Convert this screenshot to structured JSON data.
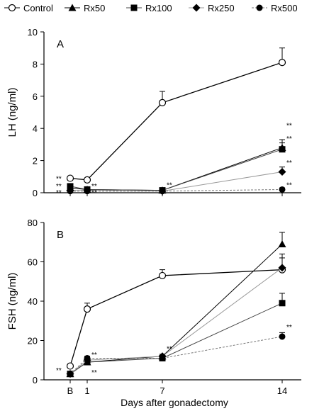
{
  "legend": {
    "entries": [
      {
        "label": "Control",
        "marker": "open-circle",
        "dash": "solid"
      },
      {
        "label": "Rx50",
        "marker": "triangle",
        "dash": "solid"
      },
      {
        "label": "Rx100",
        "marker": "square",
        "dash": "solid"
      },
      {
        "label": "Rx250",
        "marker": "diamond",
        "dash": "solid"
      },
      {
        "label": "Rx500",
        "marker": "filled-circle",
        "dash": "dashed"
      }
    ]
  },
  "xlabel": "Days after gonadectomy",
  "chart_data": [
    {
      "type": "line",
      "panel_label": "A",
      "ylabel": "LH (ng/ml)",
      "ylim": [
        0,
        10
      ],
      "yticks": [
        0,
        2,
        4,
        6,
        8,
        10
      ],
      "xticks": [
        {
          "value": 0,
          "label": "B"
        },
        {
          "value": 1,
          "label": "1"
        },
        {
          "value": 7,
          "label": "7"
        },
        {
          "value": 14,
          "label": "14"
        }
      ],
      "grid": false,
      "series": [
        {
          "name": "Control",
          "x": [
            0,
            1,
            7,
            14
          ],
          "y": [
            0.9,
            0.8,
            5.6,
            8.1
          ],
          "err": [
            0.1,
            0.1,
            0.7,
            0.9
          ]
        },
        {
          "name": "Rx50",
          "x": [
            0,
            1,
            7,
            14
          ],
          "y": [
            0.3,
            0.2,
            0.15,
            2.8
          ],
          "err": [
            0.05,
            0.05,
            0.05,
            0.5
          ]
        },
        {
          "name": "Rx100",
          "x": [
            0,
            1,
            7,
            14
          ],
          "y": [
            0.4,
            0.2,
            0.15,
            2.7
          ],
          "err": [
            0.05,
            0.05,
            0.05,
            0.4
          ]
        },
        {
          "name": "Rx250",
          "x": [
            0,
            1,
            7,
            14
          ],
          "y": [
            0.15,
            0.15,
            0.1,
            1.3
          ],
          "err": [
            0.05,
            0.05,
            0.05,
            0.3
          ]
        },
        {
          "name": "Rx500",
          "x": [
            0,
            1,
            7,
            14
          ],
          "y": [
            0.1,
            0.1,
            0.1,
            0.2
          ],
          "err": [
            0.02,
            0.02,
            0.02,
            0.1
          ]
        }
      ],
      "annotations": [
        {
          "x": 0,
          "y": 0.9,
          "text": "**"
        },
        {
          "x": 0,
          "y": 0.45,
          "text": "**"
        },
        {
          "x": 0,
          "y": 0.05,
          "text": "**"
        },
        {
          "x": 1,
          "y": 0.45,
          "text": "**"
        },
        {
          "x": 1,
          "y": 0.05,
          "text": "**"
        },
        {
          "x": 7,
          "y": 0.5,
          "text": "**"
        },
        {
          "x": 14,
          "y": 4.2,
          "text": "**"
        },
        {
          "x": 14,
          "y": 3.4,
          "text": "**"
        },
        {
          "x": 14,
          "y": 1.9,
          "text": "**"
        },
        {
          "x": 14,
          "y": 0.5,
          "text": "**"
        }
      ]
    },
    {
      "type": "line",
      "panel_label": "B",
      "ylabel": "FSH (ng/ml)",
      "ylim": [
        0,
        80
      ],
      "yticks": [
        0,
        20,
        40,
        60,
        80
      ],
      "xticks": [
        {
          "value": 0,
          "label": "B"
        },
        {
          "value": 1,
          "label": "1"
        },
        {
          "value": 7,
          "label": "7"
        },
        {
          "value": 14,
          "label": "14"
        }
      ],
      "grid": false,
      "series": [
        {
          "name": "Control",
          "x": [
            0,
            1,
            7,
            14
          ],
          "y": [
            7,
            36,
            53,
            56
          ],
          "err": [
            1,
            3,
            3,
            8
          ]
        },
        {
          "name": "Rx50",
          "x": [
            0,
            1,
            7,
            14
          ],
          "y": [
            3,
            9,
            12,
            69
          ],
          "err": [
            0.5,
            1,
            1,
            6
          ]
        },
        {
          "name": "Rx100",
          "x": [
            0,
            1,
            7,
            14
          ],
          "y": [
            3,
            9,
            11,
            39
          ],
          "err": [
            0.5,
            1,
            1,
            5
          ]
        },
        {
          "name": "Rx250",
          "x": [
            0,
            1,
            7,
            14
          ],
          "y": [
            3,
            10,
            12,
            57
          ],
          "err": [
            0.5,
            1,
            1,
            5
          ]
        },
        {
          "name": "Rx500",
          "x": [
            0,
            1,
            7,
            14
          ],
          "y": [
            3,
            11,
            11,
            22
          ],
          "err": [
            0.5,
            1,
            1,
            2
          ]
        }
      ],
      "annotations": [
        {
          "x": 0,
          "y": 5,
          "text": "**"
        },
        {
          "x": 1,
          "y": 13,
          "text": "**"
        },
        {
          "x": 1,
          "y": 4,
          "text": "**"
        },
        {
          "x": 7,
          "y": 16,
          "text": "**"
        },
        {
          "x": 14,
          "y": 27,
          "text": "**"
        }
      ]
    }
  ]
}
